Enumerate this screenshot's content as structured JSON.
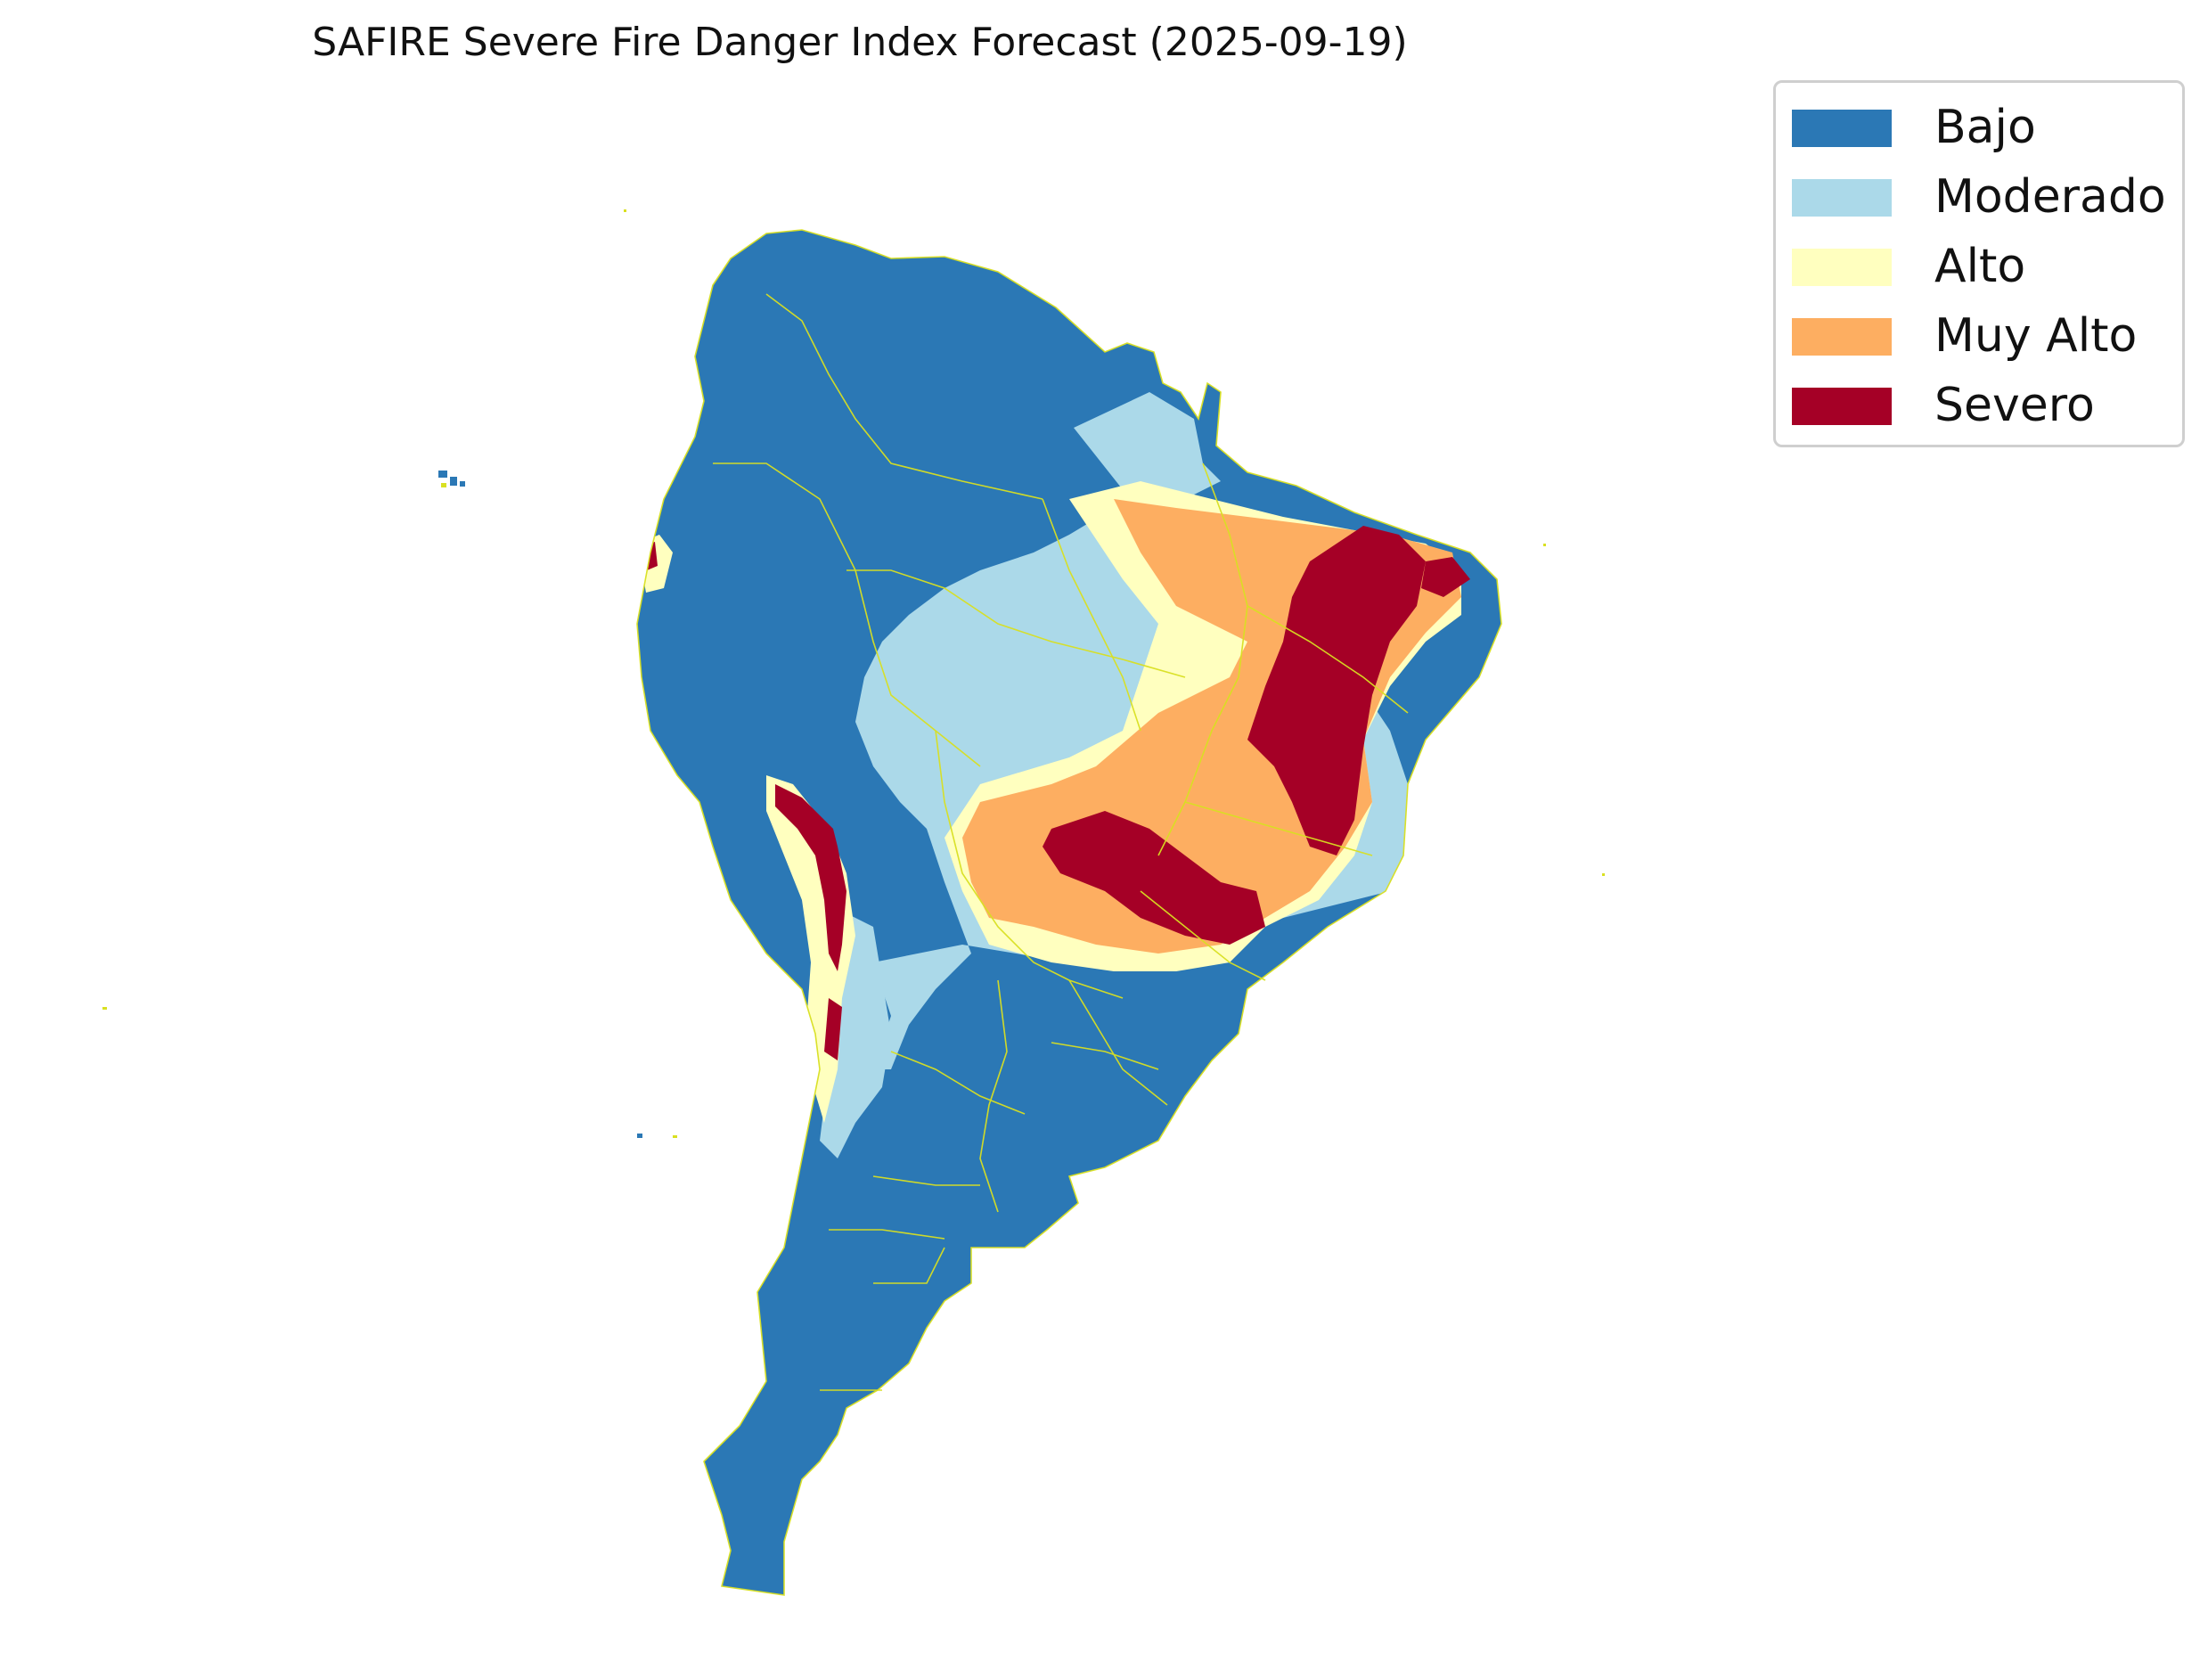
{
  "title": "SAFIRE Severe Fire Danger Index Forecast (2025-09-19)",
  "legend": {
    "items": [
      {
        "label": "Bajo",
        "color": "#2b78b5"
      },
      {
        "label": "Moderado",
        "color": "#abd9e9"
      },
      {
        "label": "Alto",
        "color": "#ffffbf"
      },
      {
        "label": "Muy Alto",
        "color": "#fdae61"
      },
      {
        "label": "Severo",
        "color": "#a50026"
      }
    ]
  },
  "border_color": "#d9e021"
}
